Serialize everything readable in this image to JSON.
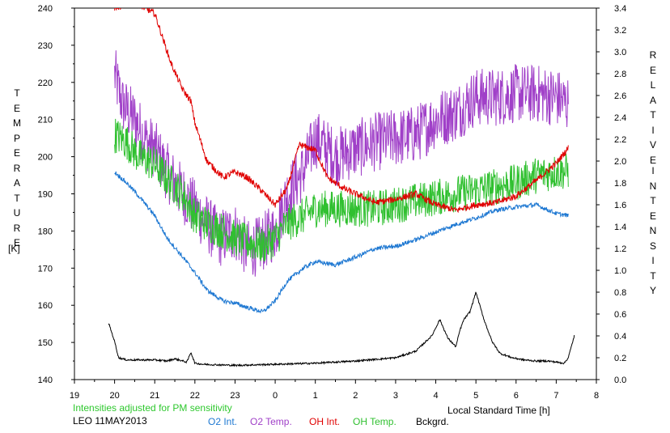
{
  "chart_data": {
    "type": "line",
    "title": "",
    "left_axis": {
      "label_letters": [
        "T",
        "E",
        "M",
        "P",
        "E",
        "R",
        "A",
        "T",
        "U",
        "R",
        "E"
      ],
      "unit": "[K]",
      "ylim": [
        140,
        240
      ],
      "ticks": [
        "140",
        "150",
        "160",
        "170",
        "180",
        "190",
        "200",
        "210",
        "220",
        "230",
        "240"
      ]
    },
    "right_axis": {
      "label_word1": [
        "R",
        "E",
        "L",
        "A",
        "T",
        "I",
        "V",
        "E"
      ],
      "label_word2": [
        "I",
        "N",
        "T",
        "E",
        "N",
        "S",
        "I",
        "T",
        "Y"
      ],
      "ylim": [
        0.0,
        3.4
      ],
      "ticks": [
        "0.0",
        "0.2",
        "0.4",
        "0.6",
        "0.8",
        "1.0",
        "1.2",
        "1.4",
        "1.6",
        "1.8",
        "2.0",
        "2.2",
        "2.4",
        "2.6",
        "2.8",
        "3.0",
        "3.2",
        "3.4"
      ]
    },
    "x_axis": {
      "label": "Local Standard Time [h]",
      "range_hours": [
        19,
        32
      ],
      "tick_labels": [
        "19",
        "20",
        "21",
        "22",
        "23",
        "0",
        "1",
        "2",
        "3",
        "4",
        "5",
        "6",
        "7",
        "8"
      ]
    },
    "note": "Intensities adjusted for PM sensitivity",
    "station_date": "LEO 11MAY2013",
    "legend": [
      "O2 Int.",
      "O2 Temp.",
      "OH Int.",
      "OH Temp.",
      "Bckgrd."
    ],
    "grid": false,
    "series": [
      {
        "name": "O2 Temp.",
        "axis": "left",
        "color": "#a040c8",
        "noise": 8,
        "x": [
          20.0,
          20.2,
          20.5,
          20.8,
          21.0,
          21.3,
          21.7,
          22.0,
          22.3,
          22.6,
          23.0,
          23.3,
          23.6,
          24.0,
          24.3,
          24.7,
          25.0,
          25.5,
          26.0,
          26.5,
          27.0,
          27.5,
          28.0,
          28.5,
          29.0,
          29.5,
          30.0,
          30.5,
          31.0,
          31.3
        ],
        "y": [
          222,
          214,
          210,
          204,
          202,
          196,
          190,
          186,
          182,
          178,
          180,
          175,
          176,
          180,
          190,
          196,
          205,
          200,
          202,
          204,
          205,
          206,
          210,
          212,
          216,
          216,
          217,
          217,
          216,
          214
        ]
      },
      {
        "name": "OH Temp.",
        "axis": "left",
        "color": "#30c030",
        "noise": 5,
        "x": [
          20.0,
          20.3,
          20.6,
          21.0,
          21.3,
          21.7,
          22.0,
          22.3,
          22.7,
          23.0,
          23.3,
          23.7,
          24.0,
          24.3,
          24.7,
          25.0,
          25.5,
          26.0,
          26.5,
          27.0,
          27.5,
          28.0,
          28.5,
          29.0,
          29.5,
          30.0,
          30.5,
          31.0,
          31.3
        ],
        "y": [
          206,
          204,
          200,
          198,
          194,
          190,
          184,
          182,
          180,
          178,
          177,
          176,
          178,
          182,
          184,
          186,
          186,
          186,
          186,
          187,
          188,
          189,
          190,
          191,
          192,
          193,
          195,
          196,
          196
        ]
      },
      {
        "name": "OH Int.",
        "axis": "right",
        "color": "#e00000",
        "noise": 0.03,
        "x": [
          20.0,
          20.5,
          21.0,
          21.4,
          21.7,
          21.9,
          22.0,
          22.3,
          22.7,
          23.0,
          23.3,
          23.6,
          24.0,
          24.3,
          24.6,
          25.0,
          25.3,
          25.7,
          26.0,
          26.5,
          27.0,
          27.5,
          28.0,
          28.5,
          29.0,
          29.5,
          30.0,
          30.5,
          31.0,
          31.3
        ],
        "y": [
          3.4,
          3.45,
          3.35,
          2.9,
          2.65,
          2.55,
          2.35,
          2.0,
          1.85,
          1.9,
          1.85,
          1.75,
          1.6,
          1.75,
          2.15,
          2.1,
          1.85,
          1.75,
          1.7,
          1.62,
          1.65,
          1.7,
          1.6,
          1.55,
          1.6,
          1.62,
          1.68,
          1.82,
          1.98,
          2.12
        ]
      },
      {
        "name": "O2 Int.",
        "axis": "right",
        "color": "#1e78d2",
        "noise": 0.02,
        "x": [
          20.0,
          20.3,
          20.6,
          21.0,
          21.3,
          21.7,
          22.0,
          22.3,
          22.7,
          23.0,
          23.3,
          23.7,
          24.0,
          24.3,
          24.7,
          25.0,
          25.5,
          26.0,
          26.5,
          27.0,
          27.5,
          28.0,
          28.5,
          29.0,
          29.5,
          30.0,
          30.5,
          31.0,
          31.3
        ],
        "y": [
          1.9,
          1.8,
          1.68,
          1.5,
          1.3,
          1.12,
          0.98,
          0.82,
          0.72,
          0.7,
          0.66,
          0.62,
          0.72,
          0.9,
          1.02,
          1.08,
          1.05,
          1.12,
          1.2,
          1.22,
          1.28,
          1.35,
          1.42,
          1.48,
          1.55,
          1.58,
          1.6,
          1.52,
          1.5
        ]
      },
      {
        "name": "Bckgrd.",
        "axis": "right",
        "color": "#000000",
        "noise": 0.008,
        "x": [
          19.85,
          20.0,
          20.1,
          20.3,
          21.0,
          21.3,
          21.5,
          21.8,
          21.9,
          22.0,
          22.2,
          23.0,
          24.0,
          25.0,
          26.0,
          27.0,
          27.5,
          27.9,
          28.1,
          28.3,
          28.5,
          28.6,
          28.7,
          28.85,
          29.0,
          29.2,
          29.4,
          29.6,
          29.9,
          30.2,
          30.5,
          30.8,
          31.0,
          31.2,
          31.3,
          31.45
        ],
        "y": [
          0.52,
          0.35,
          0.2,
          0.18,
          0.18,
          0.17,
          0.19,
          0.16,
          0.25,
          0.15,
          0.14,
          0.13,
          0.14,
          0.15,
          0.17,
          0.2,
          0.26,
          0.4,
          0.55,
          0.38,
          0.3,
          0.45,
          0.55,
          0.62,
          0.8,
          0.55,
          0.35,
          0.24,
          0.2,
          0.18,
          0.17,
          0.17,
          0.16,
          0.15,
          0.2,
          0.4
        ]
      }
    ]
  }
}
